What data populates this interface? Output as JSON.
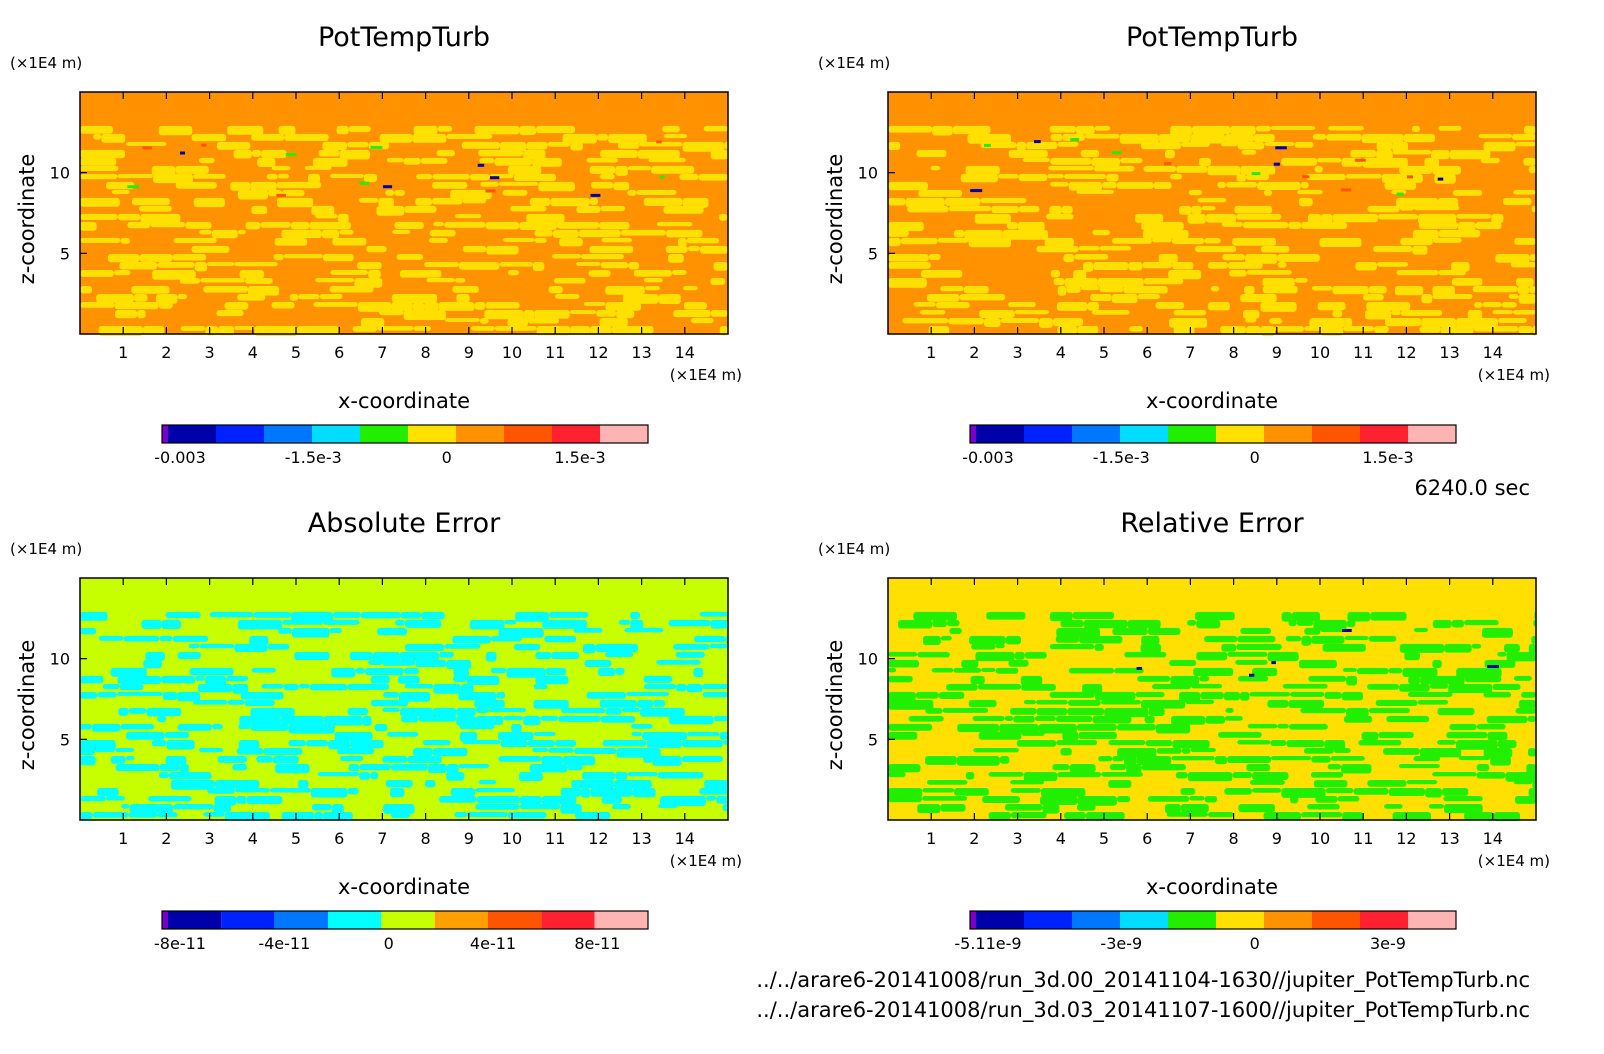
{
  "chart_data": [
    {
      "type": "heatmap",
      "title": "PotTempTurb",
      "xlabel": "x-coordinate",
      "ylabel": "z-coordinate",
      "x_unit": "(×1E4 m)",
      "y_unit": "(×1E4 m)",
      "xlim": [
        0,
        15
      ],
      "ylim": [
        0,
        15
      ],
      "x_ticks": [
        "1",
        "2",
        "3",
        "4",
        "5",
        "6",
        "7",
        "8",
        "9",
        "10",
        "11",
        "12",
        "13",
        "14"
      ],
      "y_ticks": [
        "5",
        "10"
      ],
      "colorbar": {
        "colors": [
          "#7a00c8",
          "#0000aa",
          "#0022ff",
          "#0077ff",
          "#00ddff",
          "#22ee00",
          "#ffe000",
          "#ff9200",
          "#ff5500",
          "#ff2030",
          "#ffb4b4"
        ],
        "tick_labels": [
          "-0.003",
          "-1.5e-3",
          "0",
          "1.5e-3"
        ]
      },
      "field_colors": [
        "#ff9200",
        "#ffe000",
        "#ff5500",
        "#22ee00",
        "#0000aa"
      ]
    },
    {
      "type": "heatmap",
      "title": "PotTempTurb",
      "xlabel": "x-coordinate",
      "ylabel": "z-coordinate",
      "x_unit": "(×1E4 m)",
      "y_unit": "(×1E4 m)",
      "xlim": [
        0,
        15
      ],
      "ylim": [
        0,
        15
      ],
      "x_ticks": [
        "1",
        "2",
        "3",
        "4",
        "5",
        "6",
        "7",
        "8",
        "9",
        "10",
        "11",
        "12",
        "13",
        "14"
      ],
      "y_ticks": [
        "5",
        "10"
      ],
      "colorbar": {
        "colors": [
          "#7a00c8",
          "#0000aa",
          "#0022ff",
          "#0077ff",
          "#00ddff",
          "#22ee00",
          "#ffe000",
          "#ff9200",
          "#ff5500",
          "#ff2030",
          "#ffb4b4"
        ],
        "tick_labels": [
          "-0.003",
          "-1.5e-3",
          "0",
          "1.5e-3"
        ]
      },
      "field_colors": [
        "#ff9200",
        "#ffe000",
        "#ff5500",
        "#22ee00",
        "#0000aa"
      ]
    },
    {
      "type": "heatmap",
      "title": "Absolute Error",
      "xlabel": "x-coordinate",
      "ylabel": "z-coordinate",
      "x_unit": "(×1E4 m)",
      "y_unit": "(×1E4 m)",
      "xlim": [
        0,
        15
      ],
      "ylim": [
        0,
        15
      ],
      "x_ticks": [
        "1",
        "2",
        "3",
        "4",
        "5",
        "6",
        "7",
        "8",
        "9",
        "10",
        "11",
        "12",
        "13",
        "14"
      ],
      "y_ticks": [
        "5",
        "10"
      ],
      "colorbar": {
        "colors": [
          "#7a00c8",
          "#0000aa",
          "#0022ff",
          "#0077ff",
          "#00ffff",
          "#c8ff00",
          "#ffa000",
          "#ff5500",
          "#ff2030",
          "#ffb4b4"
        ],
        "tick_labels": [
          "-8e-11",
          "-4e-11",
          "0",
          "4e-11",
          "8e-11"
        ]
      },
      "field_colors": [
        "#c8ff00",
        "#00ffff"
      ]
    },
    {
      "type": "heatmap",
      "title": "Relative Error",
      "xlabel": "x-coordinate",
      "ylabel": "z-coordinate",
      "x_unit": "(×1E4 m)",
      "y_unit": "(×1E4 m)",
      "xlim": [
        0,
        15
      ],
      "ylim": [
        0,
        15
      ],
      "x_ticks": [
        "1",
        "2",
        "3",
        "4",
        "5",
        "6",
        "7",
        "8",
        "9",
        "10",
        "11",
        "12",
        "13",
        "14"
      ],
      "y_ticks": [
        "5",
        "10"
      ],
      "colorbar": {
        "colors": [
          "#7a00c8",
          "#0000aa",
          "#0022ff",
          "#0077ff",
          "#00ddff",
          "#22ee00",
          "#ffe000",
          "#ff9200",
          "#ff5500",
          "#ff2030",
          "#ffb4b4"
        ],
        "tick_labels": [
          "-5.11e-9",
          "-3e-9",
          "0",
          "3e-9"
        ]
      },
      "field_colors": [
        "#ffe000",
        "#22ee00",
        "#0000aa"
      ]
    }
  ],
  "time_label": "6240.0 sec",
  "file_paths": [
    "../../arare6-20141008/run_3d.00_20141104-1630//jupiter_PotTempTurb.nc",
    "../../arare6-20141008/run_3d.03_20141107-1600//jupiter_PotTempTurb.nc"
  ]
}
